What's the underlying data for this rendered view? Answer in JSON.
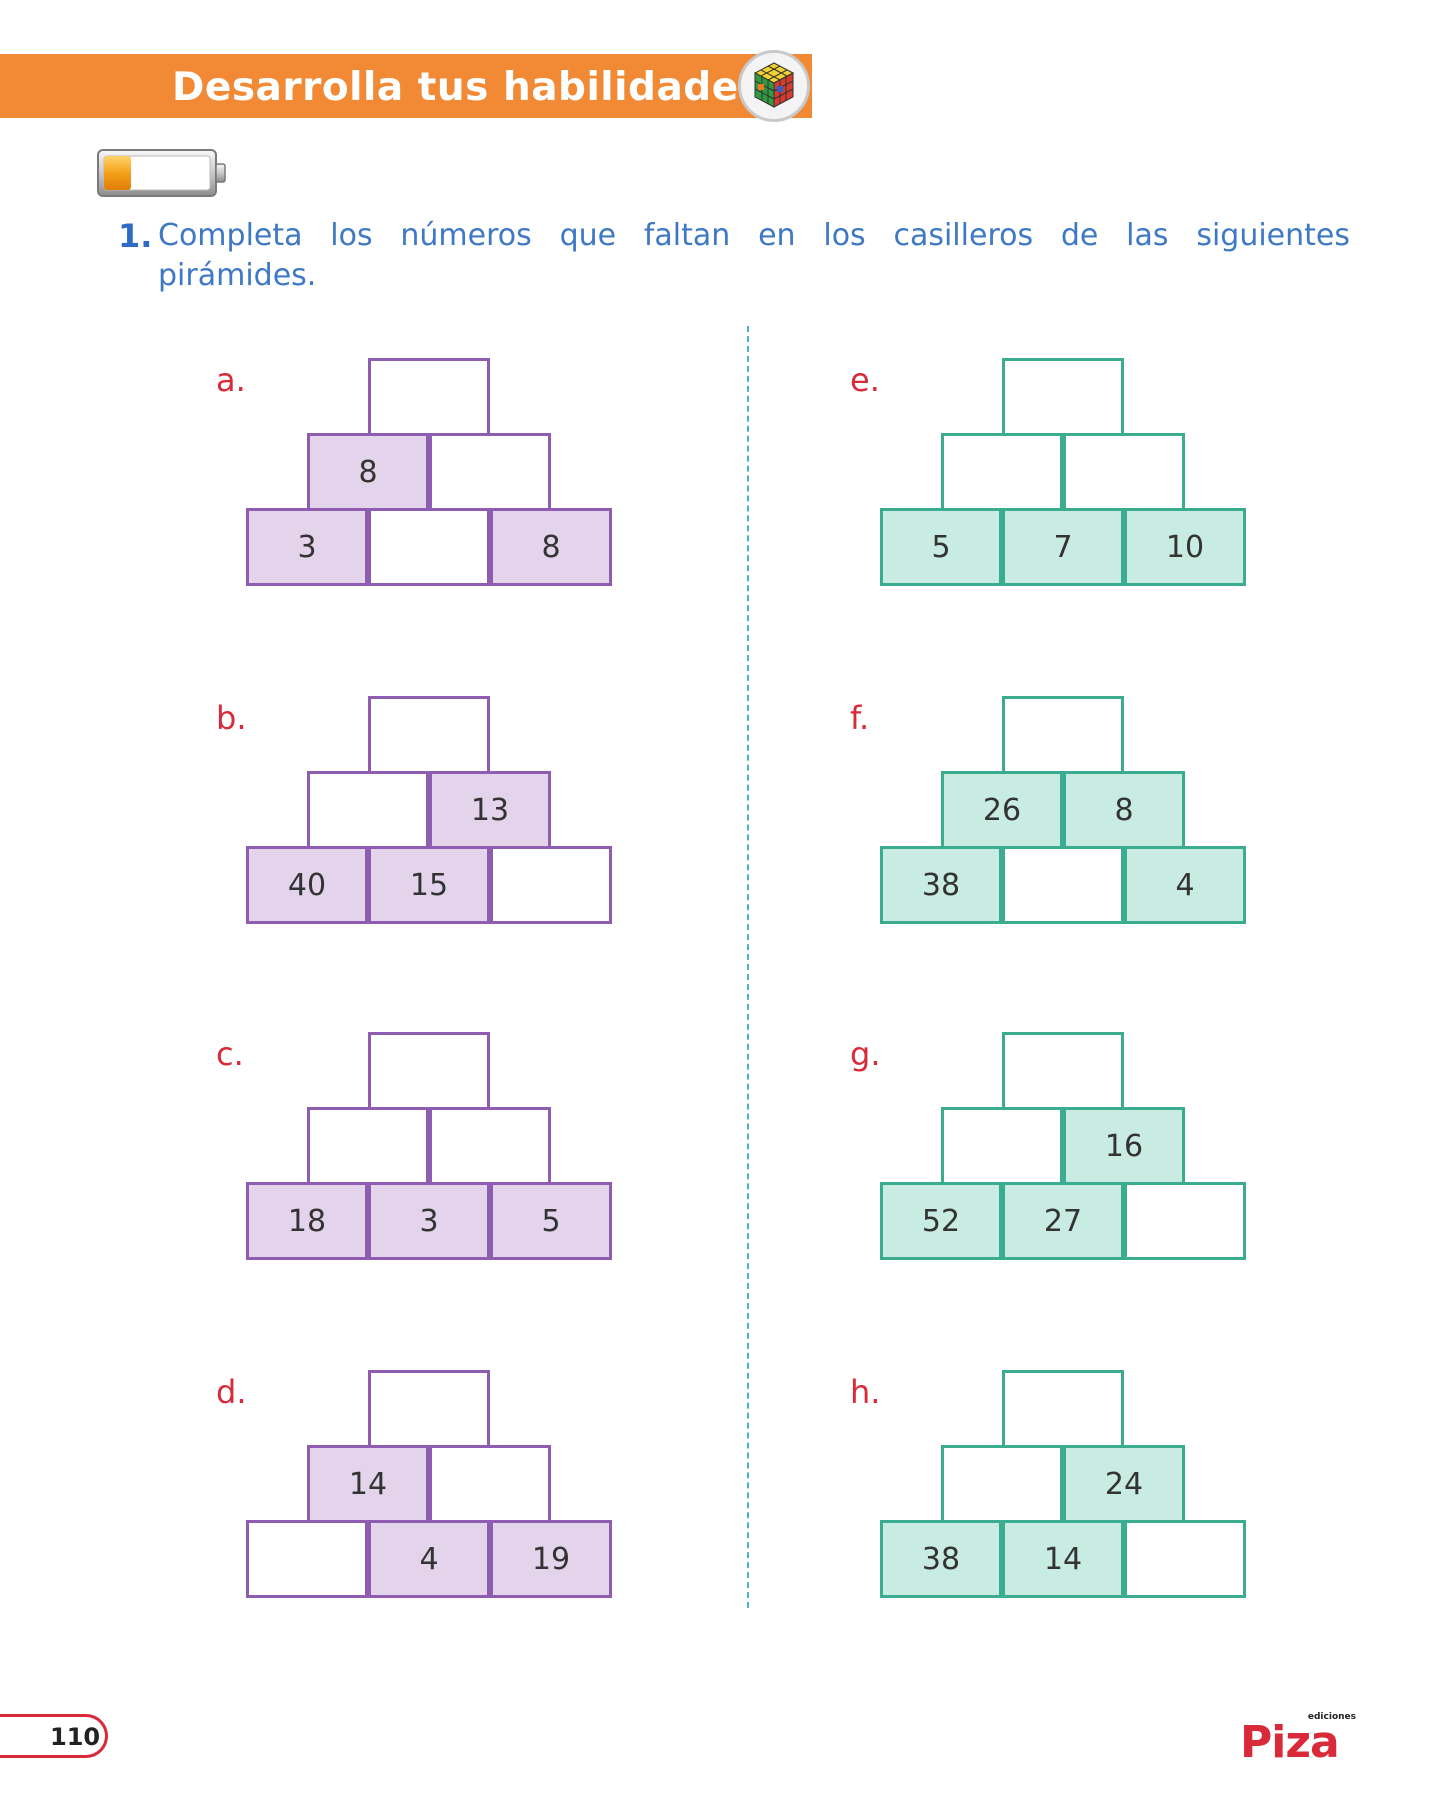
{
  "header": {
    "title": "Desarrolla tus habilidades",
    "badge_icon": "rubiks-cube-icon",
    "level_icon": "battery-icon",
    "level_fraction": 0.25
  },
  "exercise": {
    "number": "1.",
    "line1_words": [
      "Completa",
      "los",
      "números",
      "que",
      "faltan",
      "en",
      "los",
      "casilleros",
      "de",
      "las",
      "siguientes"
    ],
    "line2": "pirámides."
  },
  "colors": {
    "banner": "#f28a35",
    "instruction": "#3f78c4",
    "label": "#d92a3a",
    "purple_border": "#8e5cb0",
    "purple_fill": "#e3d4ec",
    "teal_border": "#3bac90",
    "teal_fill": "#c8ebe2"
  },
  "pyramids": [
    {
      "label": "a.",
      "theme": "purple",
      "top": "",
      "middle": [
        "8",
        ""
      ],
      "bottom": [
        "3",
        "",
        "8"
      ]
    },
    {
      "label": "b.",
      "theme": "purple",
      "top": "",
      "middle": [
        "",
        "13"
      ],
      "bottom": [
        "40",
        "15",
        ""
      ]
    },
    {
      "label": "c.",
      "theme": "purple",
      "top": "",
      "middle": [
        "",
        ""
      ],
      "bottom": [
        "18",
        "3",
        "5"
      ]
    },
    {
      "label": "d.",
      "theme": "purple",
      "top": "",
      "middle": [
        "14",
        ""
      ],
      "bottom": [
        "",
        "4",
        "19"
      ]
    },
    {
      "label": "e.",
      "theme": "teal",
      "top": "",
      "middle": [
        "",
        ""
      ],
      "bottom": [
        "5",
        "7",
        "10"
      ]
    },
    {
      "label": "f.",
      "theme": "teal",
      "top": "",
      "middle": [
        "26",
        "8"
      ],
      "bottom": [
        "38",
        "",
        "4"
      ]
    },
    {
      "label": "g.",
      "theme": "teal",
      "top": "",
      "middle": [
        "",
        "16"
      ],
      "bottom": [
        "52",
        "27",
        ""
      ]
    },
    {
      "label": "h.",
      "theme": "teal",
      "top": "",
      "middle": [
        "",
        "24"
      ],
      "bottom": [
        "38",
        "14",
        ""
      ]
    }
  ],
  "footer": {
    "page_number": "110",
    "publisher_small": "ediciones",
    "publisher_main": "Piza"
  }
}
